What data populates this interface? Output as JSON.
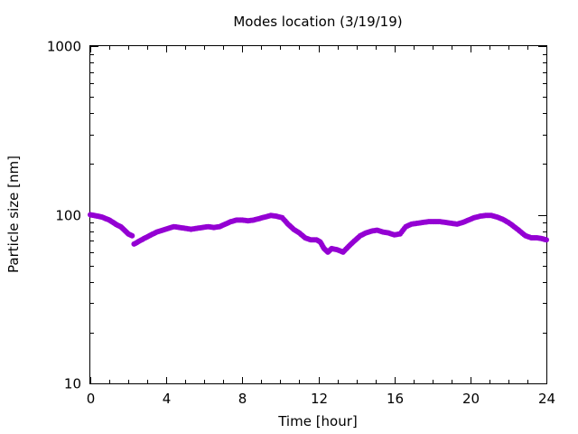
{
  "chart_data": {
    "type": "scatter",
    "title": "Modes location (3/19/19)",
    "xlabel": "Time [hour]",
    "ylabel": "Particle size [nm]",
    "xlim": [
      0,
      24
    ],
    "ylim": [
      10,
      1000
    ],
    "yscale": "log",
    "xticks": [
      0,
      4,
      8,
      12,
      16,
      20,
      24
    ],
    "xtick_labels": [
      "0",
      "4",
      "8",
      "12",
      "16",
      "20",
      "24"
    ],
    "yticks": [
      10,
      100,
      1000
    ],
    "ytick_labels": [
      "10",
      "100",
      "1000"
    ],
    "grid": false,
    "legend": "none",
    "marker_color": "#9400d3",
    "series": [
      {
        "segments": [
          [
            [
              0.0,
              100
            ],
            [
              0.2,
              99
            ],
            [
              0.4,
              98
            ],
            [
              0.6,
              97
            ],
            [
              0.8,
              95
            ],
            [
              1.0,
              93
            ],
            [
              1.2,
              90
            ],
            [
              1.4,
              87
            ],
            [
              1.6,
              85
            ],
            [
              1.8,
              81
            ],
            [
              2.0,
              77
            ],
            [
              2.2,
              75
            ]
          ],
          [
            [
              2.3,
              67
            ],
            [
              2.6,
              70
            ],
            [
              2.9,
              73
            ],
            [
              3.2,
              76
            ],
            [
              3.5,
              79
            ],
            [
              3.8,
              81
            ],
            [
              4.1,
              83
            ],
            [
              4.4,
              85
            ],
            [
              4.7,
              84
            ],
            [
              5.0,
              83
            ],
            [
              5.3,
              82
            ],
            [
              5.6,
              83
            ],
            [
              5.9,
              84
            ],
            [
              6.2,
              85
            ],
            [
              6.5,
              84
            ],
            [
              6.8,
              85
            ],
            [
              7.1,
              88
            ],
            [
              7.4,
              91
            ],
            [
              7.7,
              93
            ],
            [
              8.0,
              93
            ],
            [
              8.3,
              92
            ],
            [
              8.6,
              93
            ],
            [
              8.9,
              95
            ],
            [
              9.2,
              97
            ],
            [
              9.5,
              99
            ],
            [
              9.8,
              98
            ],
            [
              10.1,
              96
            ],
            [
              10.4,
              88
            ],
            [
              10.7,
              82
            ],
            [
              11.0,
              78
            ],
            [
              11.3,
              73
            ],
            [
              11.6,
              71
            ],
            [
              11.9,
              71
            ],
            [
              12.1,
              69
            ],
            [
              12.3,
              63
            ],
            [
              12.5,
              60
            ],
            [
              12.7,
              63
            ],
            [
              13.0,
              62
            ],
            [
              13.3,
              60
            ],
            [
              13.6,
              65
            ],
            [
              13.9,
              70
            ],
            [
              14.2,
              75
            ],
            [
              14.5,
              78
            ],
            [
              14.8,
              80
            ],
            [
              15.1,
              81
            ],
            [
              15.4,
              79
            ],
            [
              15.7,
              78
            ],
            [
              16.0,
              76
            ],
            [
              16.3,
              77
            ],
            [
              16.6,
              85
            ],
            [
              16.9,
              88
            ],
            [
              17.2,
              89
            ],
            [
              17.5,
              90
            ],
            [
              17.8,
              91
            ],
            [
              18.1,
              91
            ],
            [
              18.4,
              91
            ],
            [
              18.7,
              90
            ],
            [
              19.0,
              89
            ],
            [
              19.3,
              88
            ],
            [
              19.6,
              90
            ],
            [
              19.9,
              93
            ],
            [
              20.2,
              96
            ],
            [
              20.5,
              98
            ],
            [
              20.8,
              99
            ],
            [
              21.1,
              99
            ],
            [
              21.4,
              97
            ],
            [
              21.7,
              94
            ],
            [
              22.0,
              90
            ],
            [
              22.3,
              85
            ],
            [
              22.6,
              80
            ],
            [
              22.9,
              75
            ],
            [
              23.2,
              73
            ],
            [
              23.5,
              73
            ],
            [
              23.8,
              72
            ],
            [
              24.0,
              71
            ]
          ]
        ]
      }
    ]
  }
}
